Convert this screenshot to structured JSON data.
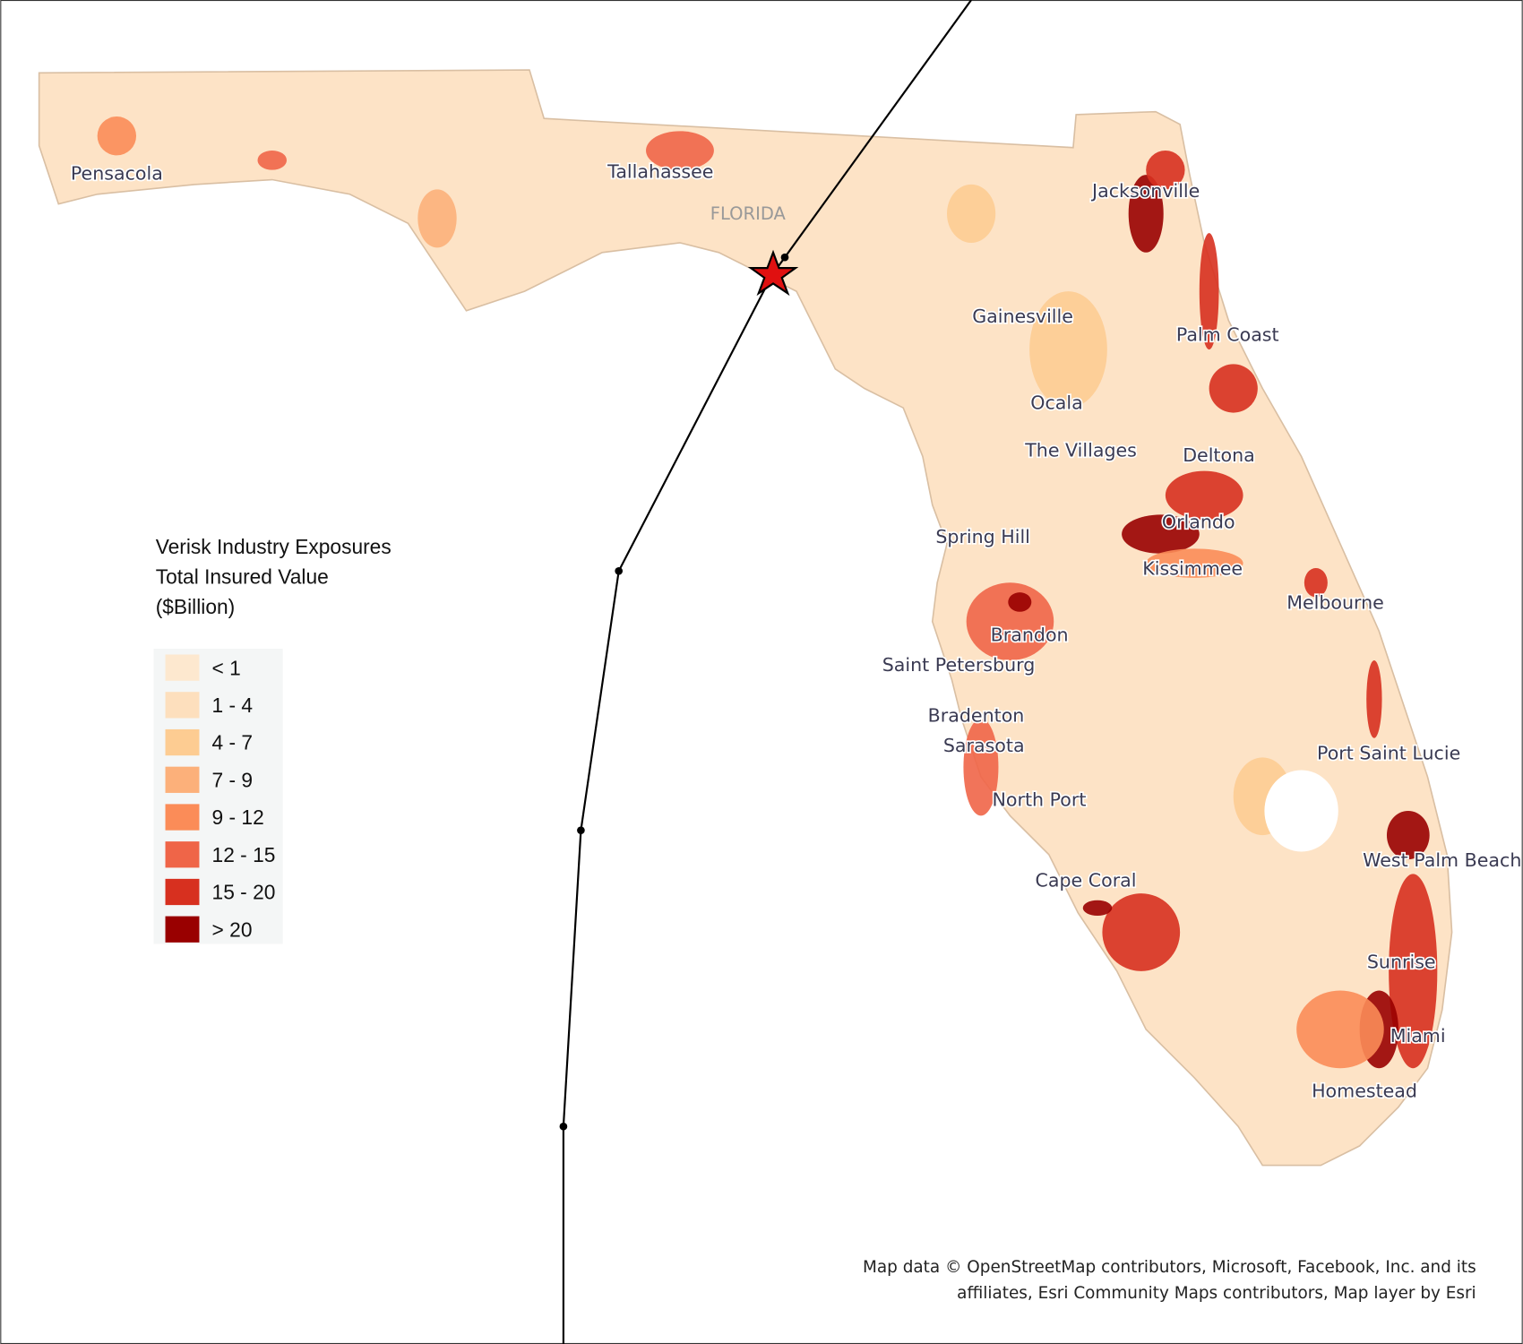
{
  "map": {
    "state_label": "FLORIDA",
    "cities": [
      "Pensacola",
      "Tallahassee",
      "Jacksonville",
      "Gainesville",
      "Palm Coast",
      "Ocala",
      "The Villages",
      "Deltona",
      "Orlando",
      "Spring Hill",
      "Kissimmee",
      "Melbourne",
      "Brandon",
      "Saint Petersburg",
      "Bradenton",
      "Sarasota",
      "Port Saint Lucie",
      "North Port",
      "West Palm Beach",
      "Cape Coral",
      "Sunrise",
      "Miami",
      "Homestead"
    ],
    "legend": {
      "title": [
        "Verisk Industry Exposures",
        "Total Insured Value",
        "($Billion)"
      ],
      "items": [
        {
          "label": "< 1",
          "color": "#fde8cf"
        },
        {
          "label": "1 - 4",
          "color": "#fddfbd"
        },
        {
          "label": "4 - 7",
          "color": "#fdcc92"
        },
        {
          "label": "7 - 9",
          "color": "#fcb07a"
        },
        {
          "label": "9 - 12",
          "color": "#fb8c58"
        },
        {
          "label": "12 - 15",
          "color": "#ef6548"
        },
        {
          "label": "15 - 20",
          "color": "#d7301f"
        },
        {
          "label": "> 20",
          "color": "#990000"
        }
      ]
    },
    "attribution": [
      "Map data © OpenStreetMap contributors, Microsoft, Facebook, Inc. and its",
      "affiliates, Esri Community Maps contributors, Map layer by Esri"
    ]
  }
}
